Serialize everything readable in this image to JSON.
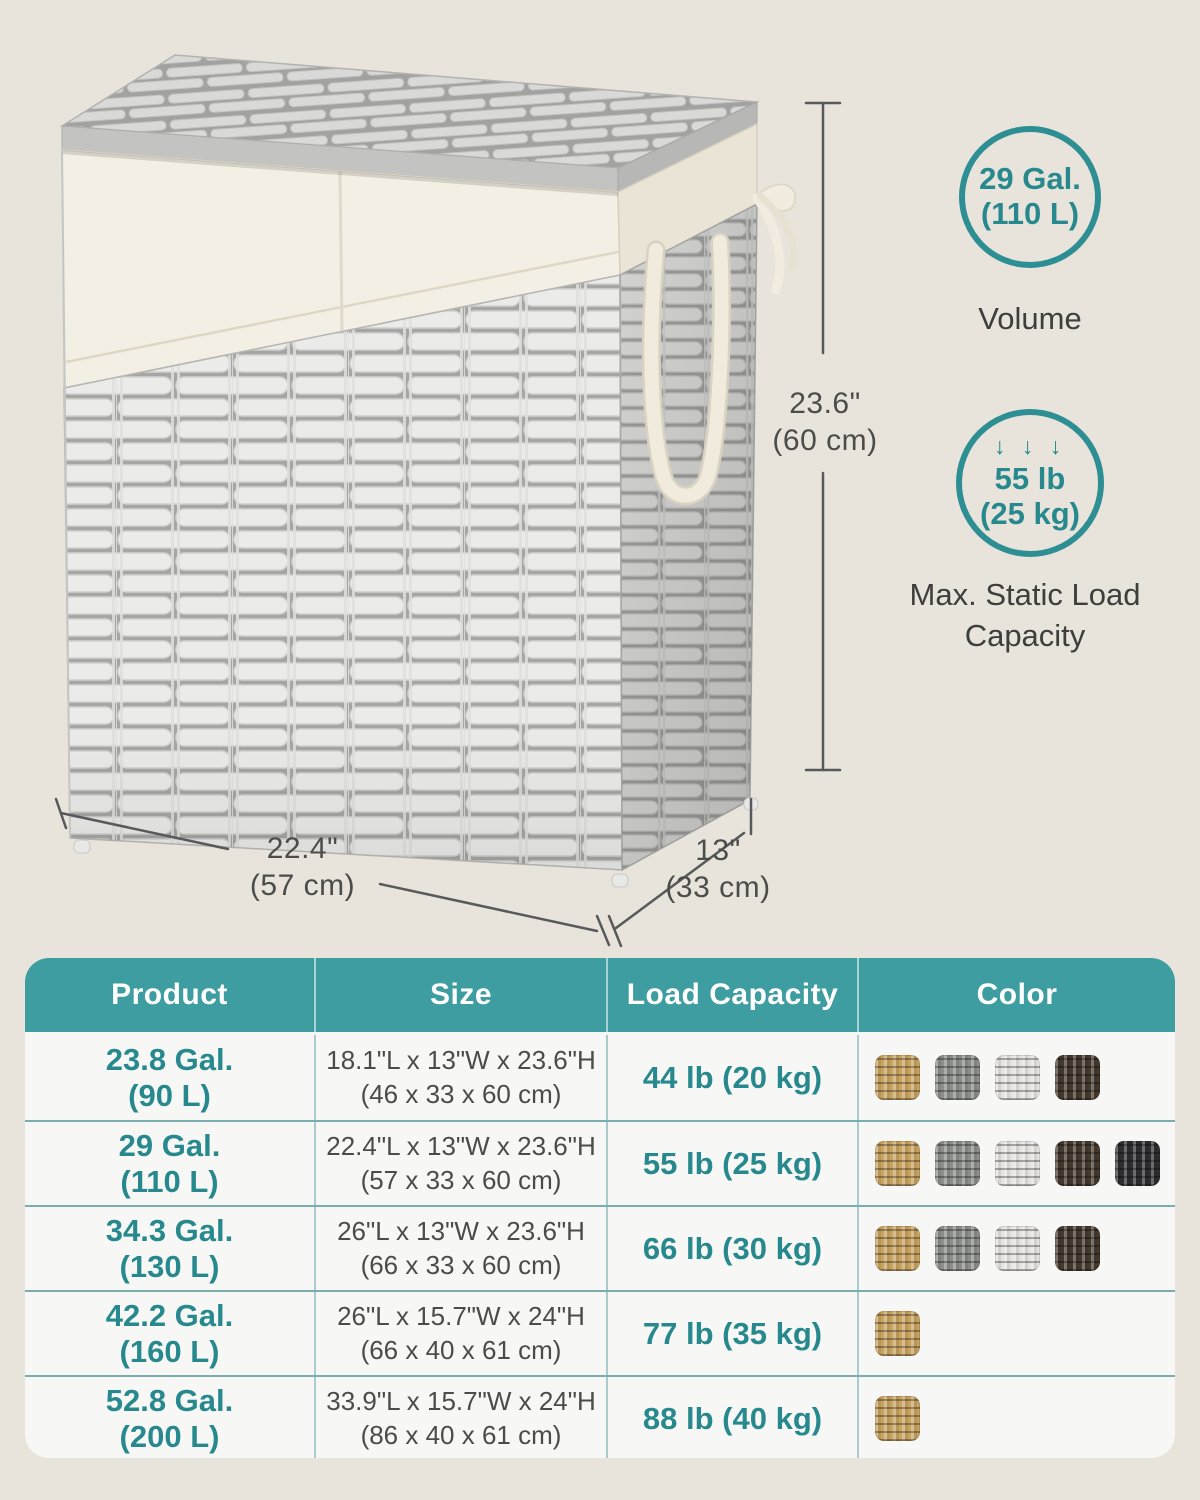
{
  "colors": {
    "page_bg": "#e8e4dc",
    "accent_teal": "#3d9da0",
    "teal_text": "#27898d",
    "dim_text": "#4c4c4b",
    "row_bg": "#f7f8f6",
    "grid_line": "#79adae",
    "header_text": "#ffffff"
  },
  "swatch_colors": {
    "camel": "#c8a25f",
    "gray": "#8c8e8a",
    "white": "#e4e3df",
    "brown": "#44392d",
    "black": "#2e2e30"
  },
  "hero": {
    "product": "wicker-laundry-hamper-with-lid-liner-and-handles",
    "dimensions": {
      "height": {
        "in": "23.6\"",
        "cm": "(60 cm)"
      },
      "width": {
        "in": "22.4\"",
        "cm": "(57 cm)"
      },
      "depth": {
        "in": "13\"",
        "cm": "(33 cm)"
      }
    },
    "badges": [
      {
        "line1": "29 Gal.",
        "line2": "(110 L)",
        "caption": "Volume"
      },
      {
        "arrows": "↓ ↓ ↓",
        "line1": "55 lb",
        "line2": "(25 kg)",
        "caption_line1": "Max. Static Load",
        "caption_line2": "Capacity"
      }
    ]
  },
  "table": {
    "headers": [
      "Product",
      "Size",
      "Load Capacity",
      "Color"
    ],
    "rows": [
      {
        "product1": "23.8 Gal.",
        "product2": "(90 L)",
        "size1": "18.1\"L x 13\"W x 23.6\"H",
        "size2": "(46 x 33 x 60 cm)",
        "load": "44 lb (20 kg)",
        "colors": [
          "camel",
          "gray",
          "white",
          "brown"
        ]
      },
      {
        "product1": "29 Gal.",
        "product2": "(110 L)",
        "size1": "22.4\"L x 13\"W x 23.6\"H",
        "size2": "(57 x 33 x 60 cm)",
        "load": "55 lb (25 kg)",
        "colors": [
          "camel",
          "gray",
          "white",
          "brown",
          "black"
        ]
      },
      {
        "product1": "34.3 Gal.",
        "product2": "(130 L)",
        "size1": "26\"L x 13\"W x 23.6\"H",
        "size2": "(66 x 33 x 60 cm)",
        "load": "66 lb (30 kg)",
        "colors": [
          "camel",
          "gray",
          "white",
          "brown"
        ]
      },
      {
        "product1": "42.2 Gal.",
        "product2": "(160 L)",
        "size1": "26\"L x 15.7\"W x 24\"H",
        "size2": "(66 x 40 x 61 cm)",
        "load": "77 lb (35 kg)",
        "colors": [
          "camel"
        ]
      },
      {
        "product1": "52.8 Gal.",
        "product2": "(200 L)",
        "size1": "33.9\"L x 15.7\"W x 24\"H",
        "size2": "(86 x 40 x 61 cm)",
        "load": "88 lb (40 kg)",
        "colors": [
          "camel"
        ]
      }
    ]
  }
}
